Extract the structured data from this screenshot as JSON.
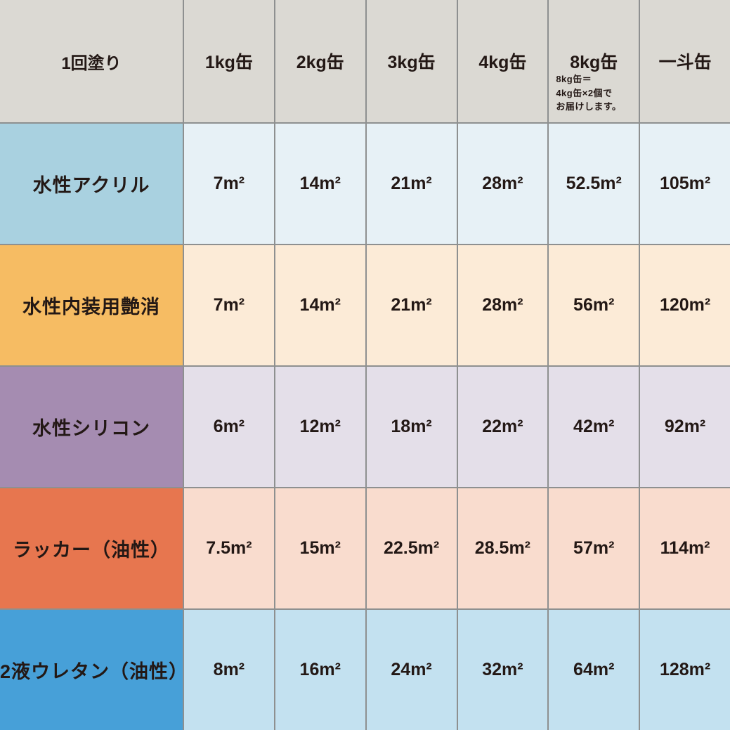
{
  "chart_data": {
    "type": "table",
    "title": "1回塗り",
    "columns": [
      "1kg缶",
      "2kg缶",
      "3kg缶",
      "4kg缶",
      "8kg缶",
      "一斗缶"
    ],
    "note": "8kg缶＝4kg缶×2個でお届けします。",
    "unit": "m²",
    "rows": [
      {
        "label": "水性アクリル",
        "values_m2": [
          7,
          14,
          21,
          28,
          52.5,
          105
        ]
      },
      {
        "label": "水性内装用艶消",
        "values_m2": [
          7,
          14,
          21,
          28,
          56,
          120
        ]
      },
      {
        "label": "水性シリコン",
        "values_m2": [
          6,
          12,
          18,
          22,
          42,
          92
        ]
      },
      {
        "label": "ラッカー（油性）",
        "values_m2": [
          7.5,
          15,
          22.5,
          28.5,
          57,
          114
        ]
      },
      {
        "label": "2液ウレタン（油性）",
        "values_m2": [
          8,
          16,
          24,
          32,
          64,
          128
        ]
      }
    ]
  },
  "table": {
    "grid_line_color": "#8e9090",
    "text_color": "#231815",
    "header": {
      "bg": "#dbd9d3",
      "corner": "1回塗り",
      "columns": [
        "1kg缶",
        "2kg缶",
        "3kg缶",
        "4kg缶",
        "8kg缶",
        "一斗缶"
      ],
      "note_lines": [
        "8kg缶＝",
        "4kg缶×2個で",
        "お届けします。"
      ]
    },
    "rows": [
      {
        "label": "水性アクリル",
        "label_bg": "#a9d1e0",
        "cell_bg": "#e7f1f6",
        "display": [
          "7m²",
          "14m²",
          "21m²",
          "28m²",
          "52.5m²",
          "105m²"
        ]
      },
      {
        "label": "水性内装用艶消",
        "label_bg": "#f6bc63",
        "cell_bg": "#fcebd7",
        "display": [
          "7m²",
          "14m²",
          "21m²",
          "28m²",
          "56m²",
          "120m²"
        ]
      },
      {
        "label": "水性シリコン",
        "label_bg": "#a58cb1",
        "cell_bg": "#e4dfe9",
        "display": [
          "6m²",
          "12m²",
          "18m²",
          "22m²",
          "42m²",
          "92m²"
        ]
      },
      {
        "label": "ラッカー（油性）",
        "label_bg": "#e7764f",
        "cell_bg": "#f9dcce",
        "display": [
          "7.5m²",
          "15m²",
          "22.5m²",
          "28.5m²",
          "57m²",
          "114m²"
        ]
      },
      {
        "label": "2液ウレタン（油性）",
        "label_bg": "#47a0d8",
        "cell_bg": "#c3e1f0",
        "display": [
          "8m²",
          "16m²",
          "24m²",
          "32m²",
          "64m²",
          "128m²"
        ]
      }
    ]
  }
}
